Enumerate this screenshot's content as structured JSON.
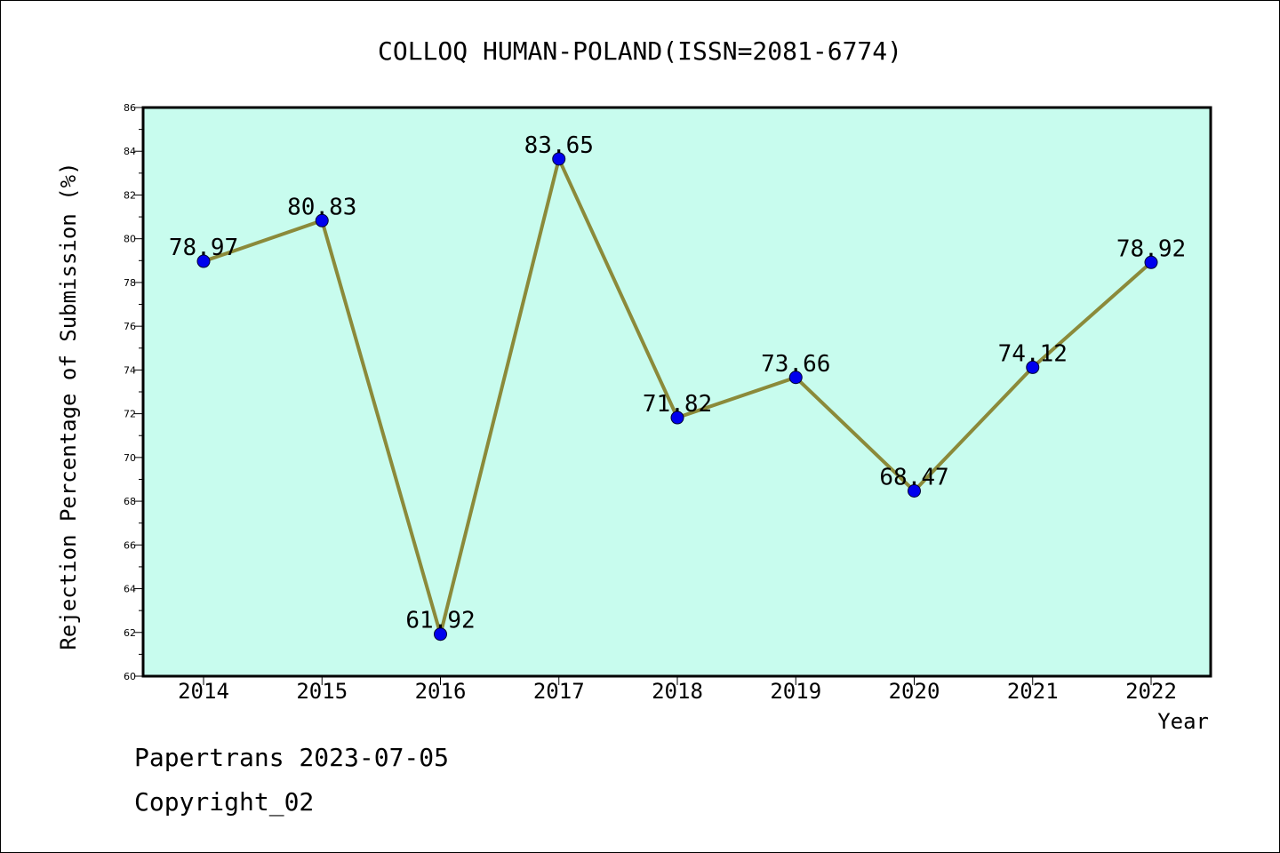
{
  "chart_data": {
    "type": "line",
    "title": "COLLOQ HUMAN-POLAND(ISSN=2081-6774)",
    "xlabel": "Year",
    "ylabel": "Rejection Percentage of Submission (%)",
    "categories": [
      "2014",
      "2015",
      "2016",
      "2017",
      "2018",
      "2019",
      "2020",
      "2021",
      "2022"
    ],
    "series": [
      {
        "values": [
          78.97,
          80.83,
          61.92,
          83.65,
          71.82,
          73.66,
          68.47,
          74.12,
          78.92
        ],
        "labels": [
          "78.97",
          "80.83",
          "61.92",
          "83.65",
          "71.82",
          "73.66",
          "68.47",
          "74.12",
          "78.92"
        ]
      }
    ],
    "ylim": [
      60,
      86
    ],
    "yticks": [
      "60",
      "62",
      "64",
      "66",
      "68",
      "70",
      "72",
      "74",
      "76",
      "78",
      "80",
      "82",
      "84",
      "86"
    ],
    "grid": false,
    "colors": {
      "plot_background": "#c8fcee",
      "line": "#8b8a3a",
      "marker": "#0000ee"
    }
  },
  "footer": {
    "line1": "Papertrans 2023-07-05",
    "line2": "Copyright_02"
  }
}
